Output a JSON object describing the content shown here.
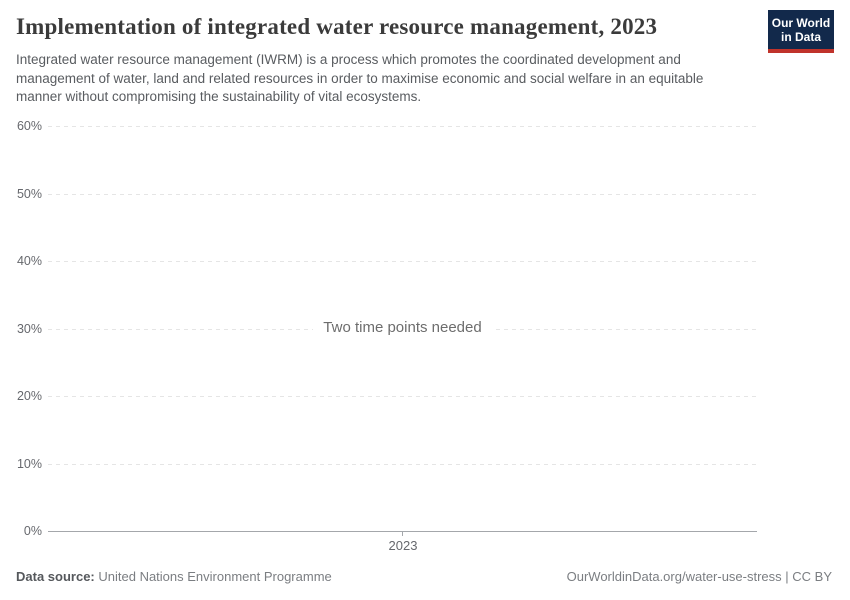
{
  "header": {
    "title": "Implementation of integrated water resource management, 2023",
    "subtitle": "Integrated water resource management (IWRM) is a process which promotes the coordinated development and management of water, land and related resources in order to maximise economic and social welfare in an equitable manner without compromising the sustainability of vital ecosystems.",
    "logo_line1": "Our World",
    "logo_line2": "in Data"
  },
  "chart_data": {
    "type": "line",
    "title": "Implementation of integrated water resource management, 2023",
    "message": "Two time points needed",
    "series": [],
    "x_ticks": [
      "2023"
    ],
    "y_ticks": [
      "60%",
      "50%",
      "40%",
      "30%",
      "20%",
      "10%",
      "0%"
    ],
    "ylim": [
      0,
      60
    ],
    "xlabel": "",
    "ylabel": "",
    "grid": true,
    "legend": "none"
  },
  "footer": {
    "data_source_label": "Data source:",
    "data_source_value": "United Nations Environment Programme",
    "attribution": "OurWorldinData.org/water-use-stress | CC BY"
  },
  "colors": {
    "logo_bg": "#12294b",
    "logo_red": "#c0332b",
    "title": "#3b3b3b",
    "subtitle": "#595c60",
    "axis_label": "#66686d",
    "gridline": "#e5e5e5",
    "axis_line": "#a4a7ab",
    "message": "#6d6d6d",
    "footer_label": "#55585c",
    "footer_value": "#7b7e82"
  }
}
